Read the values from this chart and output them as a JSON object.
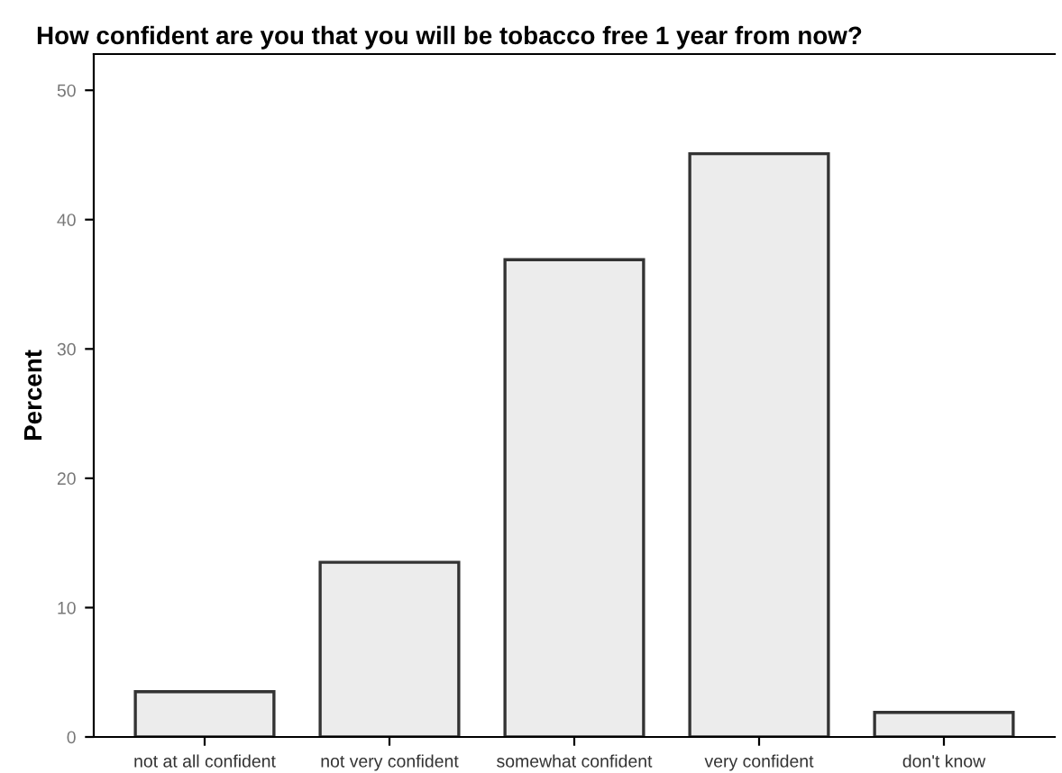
{
  "chart_data": {
    "type": "bar",
    "title": "How confident are you that you will be tobacco free 1 year from now?",
    "ylabel": "Percent",
    "categories": [
      "not at all confident",
      "not very confident",
      "somewhat confident",
      "very confident",
      "don't know"
    ],
    "values": [
      3.5,
      13.5,
      36.9,
      45.1,
      1.9
    ],
    "color": "#ececec",
    "ylim": [
      0,
      52.8
    ],
    "yticks": [
      0,
      10,
      20,
      30,
      40,
      50
    ],
    "grid": false
  }
}
